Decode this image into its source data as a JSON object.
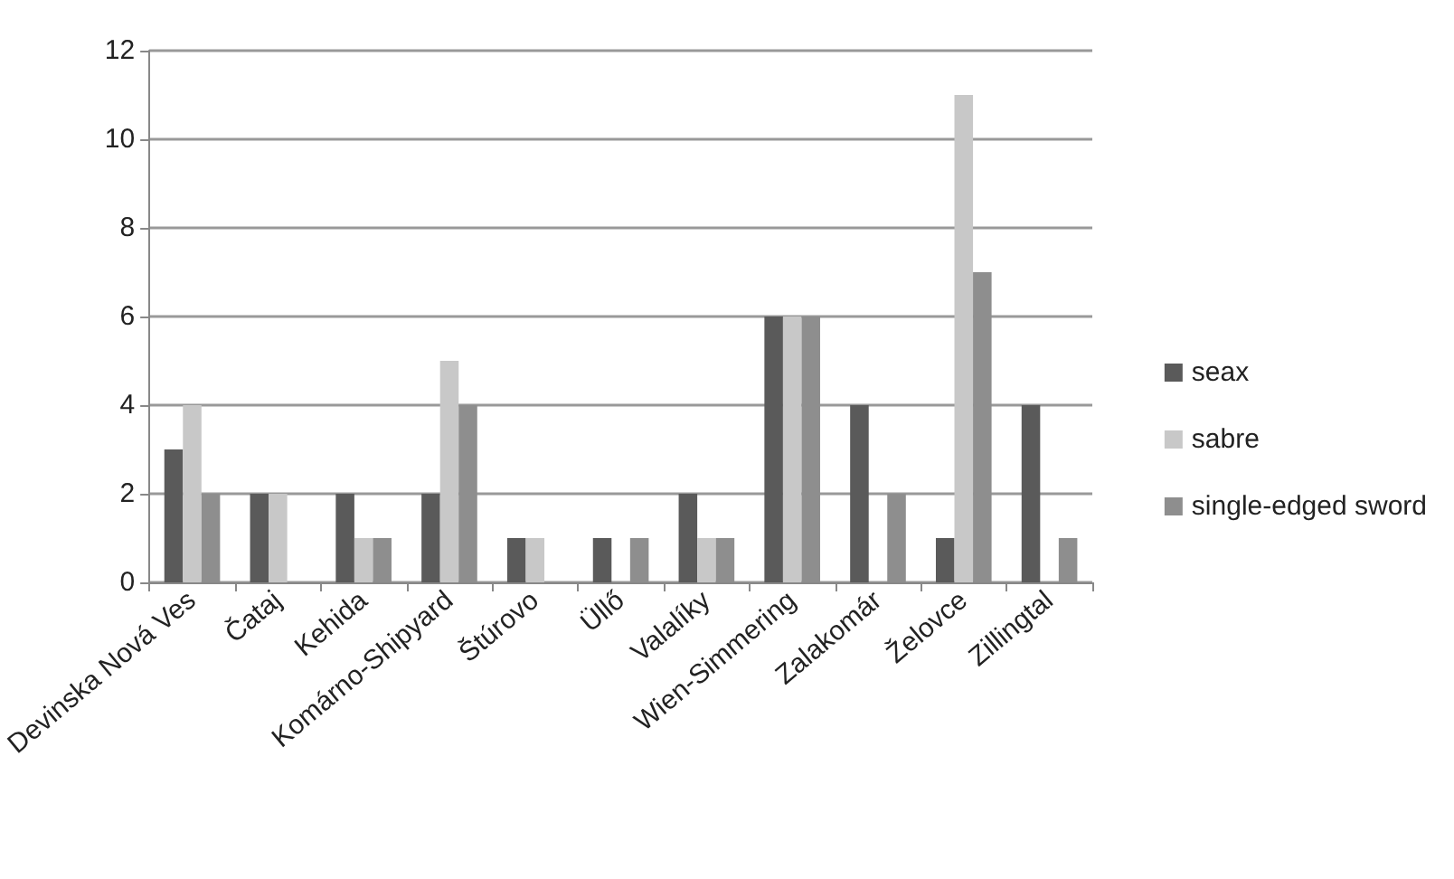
{
  "chart_data": {
    "type": "bar",
    "categories": [
      "Devinska Nová Ves",
      "Čataj",
      "Kehida",
      "Komárno-Shipyard",
      "Štúrovo",
      "Üllő",
      "Valalíky",
      "Wien-Simmering",
      "Zalakomár",
      "Želovce",
      "Zillingtal"
    ],
    "series": [
      {
        "name": "seax",
        "color": "#5a5a5a",
        "values": [
          3,
          2,
          2,
          2,
          1,
          1,
          2,
          6,
          4,
          1,
          4
        ]
      },
      {
        "name": "sabre",
        "color": "#c8c8c8",
        "values": [
          4,
          2,
          1,
          5,
          1,
          0,
          1,
          6,
          0,
          11,
          0
        ]
      },
      {
        "name": "single-edged sword",
        "color": "#8e8e8e",
        "values": [
          2,
          0,
          1,
          4,
          0,
          1,
          1,
          6,
          2,
          7,
          1
        ]
      }
    ],
    "ylim": [
      0,
      12
    ],
    "yticks": [
      0,
      2,
      4,
      6,
      8,
      10,
      12
    ],
    "grid": "y",
    "legend": "right"
  }
}
